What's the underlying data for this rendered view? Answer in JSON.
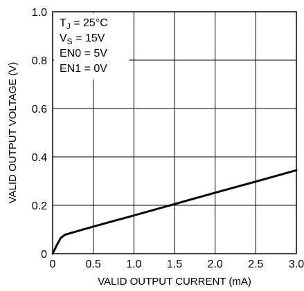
{
  "chart_data": {
    "type": "line",
    "title": "",
    "xlabel": "VALID OUTPUT CURRENT (mA)",
    "ylabel": "VALID OUTPUT VOLTAGE (V)",
    "xlim": [
      0,
      3.0
    ],
    "ylim": [
      0,
      1.0
    ],
    "x_ticks": [
      "0",
      "0.5",
      "1.0",
      "1.5",
      "2.0",
      "2.5",
      "3.0"
    ],
    "y_ticks": [
      "0",
      "0.2",
      "0.4",
      "0.6",
      "0.8",
      "1.0"
    ],
    "grid": true,
    "annotations": [
      {
        "main": "T",
        "sub": "J",
        "rest": " = 25°C"
      },
      {
        "main": "V",
        "sub": "S",
        "rest": " = 15V"
      },
      {
        "main": "EN0 = 5V",
        "sub": "",
        "rest": ""
      },
      {
        "main": "EN1 = 0V",
        "sub": "",
        "rest": ""
      }
    ],
    "series": [
      {
        "x": [
          0,
          0.05,
          0.1,
          0.15,
          0.2,
          0.5,
          1.0,
          1.5,
          2.0,
          2.5,
          3.0
        ],
        "y": [
          0,
          0.035,
          0.065,
          0.078,
          0.083,
          0.112,
          0.158,
          0.205,
          0.252,
          0.298,
          0.345
        ]
      }
    ]
  }
}
